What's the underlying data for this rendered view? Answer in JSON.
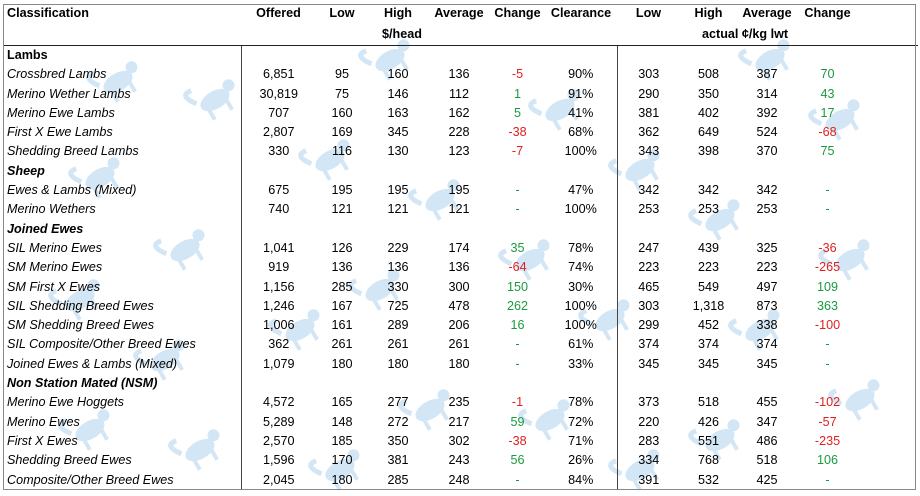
{
  "headers": {
    "classification": "Classification",
    "offered": "Offered",
    "low": "Low",
    "high": "High",
    "average": "Average",
    "change": "Change",
    "clearance": "Clearance",
    "low2": "Low",
    "high2": "High",
    "average2": "Average",
    "change2": "Change",
    "unit_head": "$/head",
    "unit_kg": "actual ¢/kg lwt"
  },
  "colors": {
    "negative": "#e02020",
    "positive": "#1a9a40",
    "watermark": "#b7d6ef"
  },
  "watermark_icon": "sheep-logo-icon",
  "sections": [
    {
      "title": "Lambs",
      "rows": [
        {
          "name": "Crossbred Lambs",
          "offered": "6,851",
          "low": "95",
          "high": "160",
          "avg": "136",
          "change": "-5",
          "clearance": "90%",
          "low2": "303",
          "high2": "508",
          "avg2": "387",
          "change2": "70"
        },
        {
          "name": "Merino Wether Lambs",
          "offered": "30,819",
          "low": "75",
          "high": "146",
          "avg": "112",
          "change": "1",
          "clearance": "91%",
          "low2": "290",
          "high2": "350",
          "avg2": "314",
          "change2": "43"
        },
        {
          "name": "Merino Ewe Lambs",
          "offered": "707",
          "low": "160",
          "high": "163",
          "avg": "162",
          "change": "5",
          "clearance": "41%",
          "low2": "381",
          "high2": "402",
          "avg2": "392",
          "change2": "17"
        },
        {
          "name": "First X Ewe Lambs",
          "offered": "2,807",
          "low": "169",
          "high": "345",
          "avg": "228",
          "change": "-38",
          "clearance": "68%",
          "low2": "362",
          "high2": "649",
          "avg2": "524",
          "change2": "-68"
        },
        {
          "name": "Shedding Breed Lambs",
          "offered": "330",
          "low": "116",
          "high": "130",
          "avg": "123",
          "change": "-7",
          "clearance": "100%",
          "low2": "343",
          "high2": "398",
          "avg2": "370",
          "change2": "75"
        }
      ]
    },
    {
      "title": "Sheep",
      "rows": [
        {
          "name": "Ewes & Lambs (Mixed)",
          "offered": "675",
          "low": "195",
          "high": "195",
          "avg": "195",
          "change": "-",
          "clearance": "47%",
          "low2": "342",
          "high2": "342",
          "avg2": "342",
          "change2": "-"
        },
        {
          "name": "Merino Wethers",
          "offered": "740",
          "low": "121",
          "high": "121",
          "avg": "121",
          "change": "-",
          "clearance": "100%",
          "low2": "253",
          "high2": "253",
          "avg2": "253",
          "change2": "-"
        }
      ]
    },
    {
      "title": "Joined Ewes",
      "rows": [
        {
          "name": "SIL Merino Ewes",
          "offered": "1,041",
          "low": "126",
          "high": "229",
          "avg": "174",
          "change": "35",
          "clearance": "78%",
          "low2": "247",
          "high2": "439",
          "avg2": "325",
          "change2": "-36"
        },
        {
          "name": "SM Merino Ewes",
          "offered": "919",
          "low": "136",
          "high": "136",
          "avg": "136",
          "change": "-64",
          "clearance": "74%",
          "low2": "223",
          "high2": "223",
          "avg2": "223",
          "change2": "-265"
        },
        {
          "name": "SM First X Ewes",
          "offered": "1,156",
          "low": "285",
          "high": "330",
          "avg": "300",
          "change": "150",
          "clearance": "30%",
          "low2": "465",
          "high2": "549",
          "avg2": "497",
          "change2": "109"
        },
        {
          "name": "SIL Shedding Breed Ewes",
          "offered": "1,246",
          "low": "167",
          "high": "725",
          "avg": "478",
          "change": "262",
          "clearance": "100%",
          "low2": "303",
          "high2": "1,318",
          "avg2": "873",
          "change2": "363"
        },
        {
          "name": "SM Shedding Breed Ewes",
          "offered": "1,006",
          "low": "161",
          "high": "289",
          "avg": "206",
          "change": "16",
          "clearance": "100%",
          "low2": "299",
          "high2": "452",
          "avg2": "338",
          "change2": "-100"
        },
        {
          "name": "SIL Composite/Other Breed Ewes",
          "offered": "362",
          "low": "261",
          "high": "261",
          "avg": "261",
          "change": "-",
          "clearance": "61%",
          "low2": "374",
          "high2": "374",
          "avg2": "374",
          "change2": "-"
        },
        {
          "name": "Joined Ewes & Lambs (Mixed)",
          "offered": "1,079",
          "low": "180",
          "high": "180",
          "avg": "180",
          "change": "-",
          "clearance": "33%",
          "low2": "345",
          "high2": "345",
          "avg2": "345",
          "change2": "-"
        }
      ]
    },
    {
      "title": "Non Station Mated (NSM)",
      "rows": [
        {
          "name": "Merino Ewe Hoggets",
          "offered": "4,572",
          "low": "165",
          "high": "277",
          "avg": "235",
          "change": "-1",
          "clearance": "78%",
          "low2": "373",
          "high2": "518",
          "avg2": "455",
          "change2": "-102"
        },
        {
          "name": "Merino Ewes",
          "offered": "5,289",
          "low": "148",
          "high": "272",
          "avg": "217",
          "change": "59",
          "clearance": "72%",
          "low2": "220",
          "high2": "426",
          "avg2": "347",
          "change2": "-57"
        },
        {
          "name": "First X Ewes",
          "offered": "2,570",
          "low": "185",
          "high": "350",
          "avg": "302",
          "change": "-38",
          "clearance": "71%",
          "low2": "283",
          "high2": "551",
          "avg2": "486",
          "change2": "-235"
        },
        {
          "name": "Shedding Breed Ewes",
          "offered": "1,596",
          "low": "170",
          "high": "381",
          "avg": "243",
          "change": "56",
          "clearance": "26%",
          "low2": "334",
          "high2": "768",
          "avg2": "518",
          "change2": "106"
        },
        {
          "name": "Composite/Other Breed Ewes",
          "offered": "2,045",
          "low": "180",
          "high": "285",
          "avg": "248",
          "change": "-",
          "clearance": "84%",
          "low2": "391",
          "high2": "532",
          "avg2": "425",
          "change2": "-"
        }
      ]
    }
  ]
}
